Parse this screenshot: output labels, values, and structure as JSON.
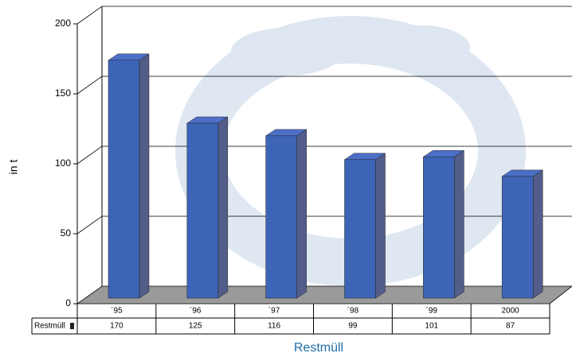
{
  "chart_data": {
    "type": "bar3d",
    "categories": [
      "´95",
      "´96",
      "´97",
      "´98",
      "´99",
      "2000"
    ],
    "series": [
      {
        "name": "Restmüll",
        "color": "#3e64b7",
        "values": [
          170,
          125,
          116,
          99,
          101,
          87
        ]
      }
    ],
    "x_label": "Restmüll",
    "y_label": "in t",
    "ylim": [
      0,
      200
    ],
    "yticks": [
      0,
      50,
      100,
      150,
      200
    ],
    "grid": true,
    "data_table": true
  }
}
